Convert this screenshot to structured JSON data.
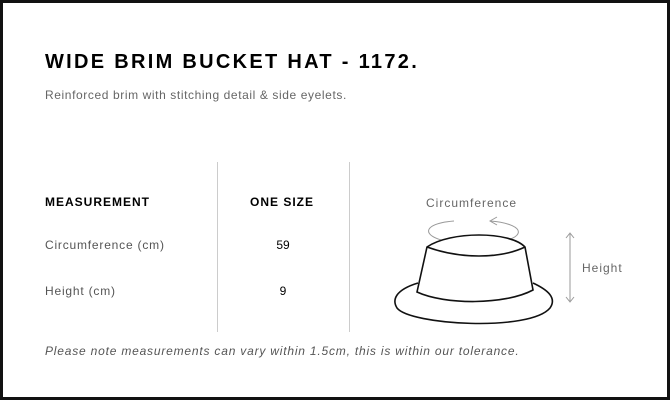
{
  "title": "WIDE BRIM BUCKET HAT - 1172.",
  "subtitle": "Reinforced brim with stitching detail & side eyelets.",
  "table": {
    "headers": [
      "MEASUREMENT",
      "ONE SIZE"
    ],
    "rows": [
      {
        "label": "Circumference (cm)",
        "value": "59"
      },
      {
        "label": "Height (cm)",
        "value": "9"
      }
    ]
  },
  "diagram": {
    "circumference_label": "Circumference",
    "height_label": "Height"
  },
  "note": "Please note measurements can vary within 1.5cm, this is within our tolerance."
}
